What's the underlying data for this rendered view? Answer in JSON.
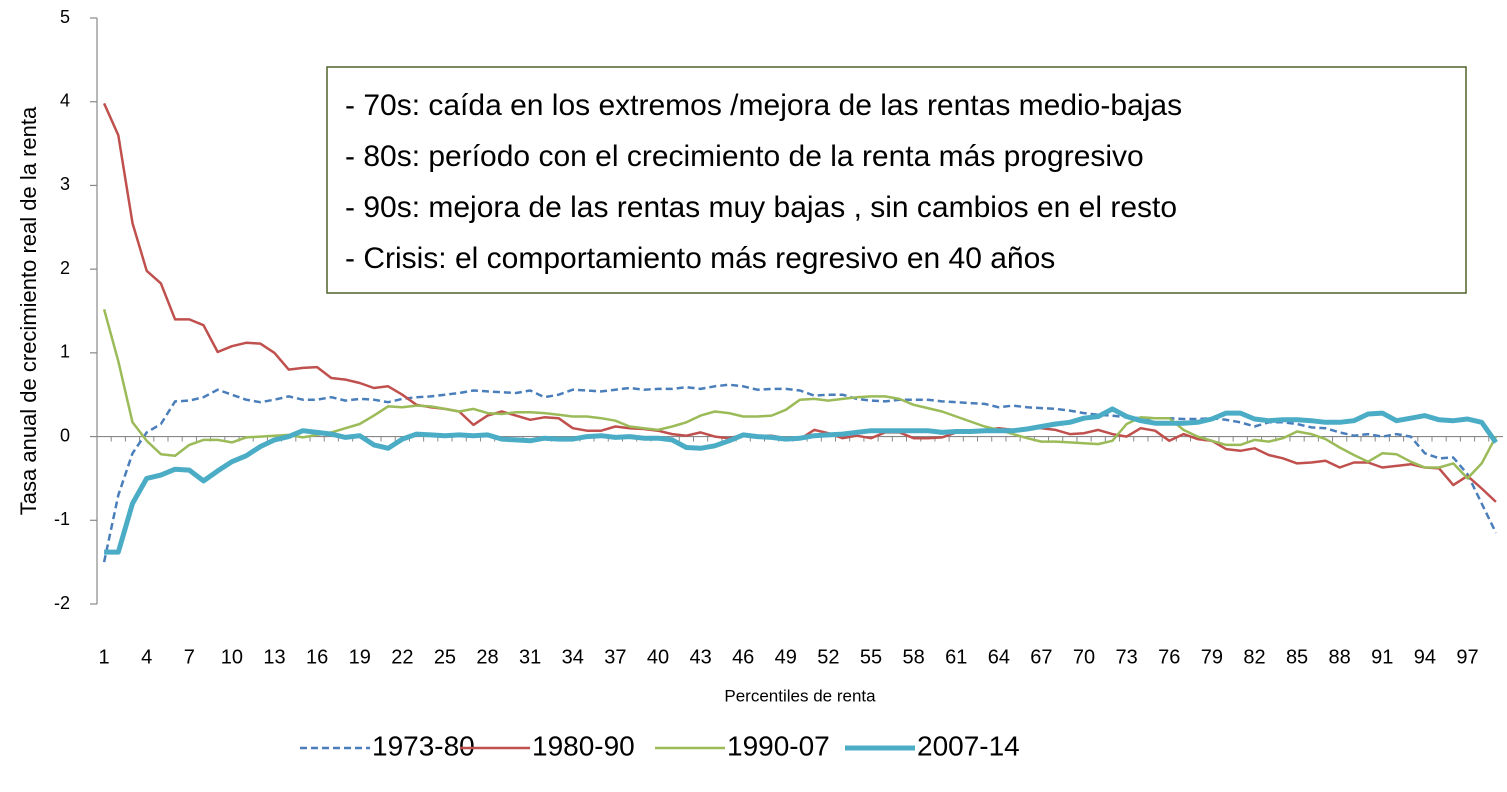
{
  "chart_data": {
    "type": "line",
    "y_label": "Tasa anual de crecimiento real de la renta",
    "x_label": "Percentiles de renta",
    "annotations": [
      "- 70s: caída en los extremos /mejora de las rentas medio-bajas",
      "- 80s: período con el crecimiento de la renta más progresivo",
      "- 90s: mejora de las rentas muy bajas , sin cambios en el resto",
      "- Crisis: el comportamiento más regresivo en 40 años"
    ],
    "categories": [
      1,
      null,
      null,
      4,
      null,
      null,
      7,
      null,
      null,
      10,
      null,
      null,
      13,
      null,
      null,
      16,
      null,
      null,
      19,
      null,
      null,
      22,
      null,
      null,
      25,
      null,
      null,
      28,
      null,
      null,
      31,
      null,
      null,
      34,
      null,
      null,
      37,
      null,
      null,
      40,
      null,
      null,
      43,
      null,
      null,
      46,
      null,
      null,
      49,
      null,
      null,
      52,
      null,
      null,
      55,
      null,
      null,
      58,
      null,
      null,
      61,
      null,
      null,
      64,
      null,
      null,
      67,
      null,
      null,
      70,
      null,
      null,
      73,
      null,
      null,
      76,
      null,
      null,
      79,
      null,
      null,
      82,
      null,
      null,
      85,
      null,
      null,
      88,
      null,
      null,
      91,
      null,
      null,
      94,
      null,
      null,
      97,
      null,
      null
    ],
    "ylim": [
      -2,
      5
    ],
    "yticks": [
      -2,
      -1,
      0,
      1,
      2,
      3,
      4,
      5
    ],
    "legend": "bottom",
    "series": [
      {
        "name": "1973-80",
        "color": "#4a7ebb",
        "dashed": true,
        "width": 2.5,
        "values": [
          -1.5,
          -0.7,
          -0.2,
          0.05,
          0.15,
          0.42,
          0.43,
          0.47,
          0.56,
          0.5,
          0.44,
          0.41,
          0.44,
          0.48,
          0.44,
          0.44,
          0.47,
          0.43,
          0.45,
          0.44,
          0.41,
          0.45,
          0.47,
          0.48,
          0.5,
          0.52,
          0.55,
          0.54,
          0.53,
          0.52,
          0.55,
          0.47,
          0.5,
          0.56,
          0.55,
          0.54,
          0.56,
          0.58,
          0.56,
          0.57,
          0.57,
          0.59,
          0.57,
          0.6,
          0.62,
          0.6,
          0.56,
          0.57,
          0.57,
          0.55,
          0.49,
          0.5,
          0.5,
          0.45,
          0.43,
          0.42,
          0.44,
          0.44,
          0.44,
          0.42,
          0.41,
          0.4,
          0.39,
          0.35,
          0.37,
          0.35,
          0.34,
          0.33,
          0.31,
          0.28,
          0.26,
          0.25,
          0.23,
          0.22,
          0.22,
          0.22,
          0.21,
          0.21,
          0.22,
          0.2,
          0.17,
          0.12,
          0.17,
          0.17,
          0.15,
          0.11,
          0.1,
          0.05,
          0.01,
          0.03,
          0.0,
          0.03,
          0.0,
          -0.2,
          -0.26,
          -0.25,
          -0.45,
          -0.8,
          -1.15
        ]
      },
      {
        "name": "1980-90",
        "color": "#c0504d",
        "dashed": false,
        "width": 2.5,
        "values": [
          3.98,
          3.6,
          2.55,
          1.98,
          1.83,
          1.4,
          1.4,
          1.33,
          1.01,
          1.08,
          1.12,
          1.11,
          1.0,
          0.8,
          0.82,
          0.83,
          0.7,
          0.68,
          0.64,
          0.58,
          0.6,
          0.5,
          0.38,
          0.35,
          0.33,
          0.3,
          0.14,
          0.25,
          0.3,
          0.25,
          0.2,
          0.23,
          0.22,
          0.1,
          0.07,
          0.07,
          0.12,
          0.1,
          0.09,
          0.07,
          0.03,
          0.01,
          0.05,
          0.0,
          -0.02,
          0.02,
          0.01,
          0.01,
          -0.02,
          -0.03,
          0.08,
          0.04,
          -0.02,
          0.01,
          -0.02,
          0.05,
          0.05,
          -0.02,
          -0.02,
          -0.01,
          0.05,
          0.06,
          0.08,
          0.1,
          0.08,
          0.1,
          0.1,
          0.08,
          0.03,
          0.04,
          0.08,
          0.03,
          0.0,
          0.1,
          0.07,
          -0.05,
          0.03,
          -0.03,
          -0.05,
          -0.15,
          -0.17,
          -0.14,
          -0.22,
          -0.26,
          -0.32,
          -0.31,
          -0.29,
          -0.37,
          -0.31,
          -0.31,
          -0.37,
          -0.35,
          -0.33,
          -0.37,
          -0.38,
          -0.58,
          -0.47,
          -0.62,
          -0.78
        ]
      },
      {
        "name": "1990-07",
        "color": "#9bbb59",
        "dashed": false,
        "width": 2.5,
        "values": [
          1.52,
          0.9,
          0.17,
          -0.05,
          -0.21,
          -0.23,
          -0.1,
          -0.04,
          -0.04,
          -0.07,
          -0.01,
          0.0,
          0.01,
          0.02,
          -0.01,
          0.02,
          0.05,
          0.1,
          0.15,
          0.25,
          0.36,
          0.35,
          0.37,
          0.36,
          0.33,
          0.3,
          0.33,
          0.28,
          0.27,
          0.29,
          0.29,
          0.28,
          0.26,
          0.24,
          0.24,
          0.22,
          0.19,
          0.12,
          0.1,
          0.08,
          0.12,
          0.17,
          0.25,
          0.3,
          0.28,
          0.24,
          0.24,
          0.25,
          0.32,
          0.44,
          0.45,
          0.43,
          0.45,
          0.47,
          0.48,
          0.48,
          0.45,
          0.38,
          0.34,
          0.3,
          0.24,
          0.18,
          0.12,
          0.08,
          0.03,
          -0.02,
          -0.06,
          -0.06,
          -0.07,
          -0.08,
          -0.09,
          -0.05,
          0.15,
          0.23,
          0.22,
          0.22,
          0.08,
          0.0,
          -0.05,
          -0.1,
          -0.1,
          -0.04,
          -0.06,
          -0.02,
          0.06,
          0.03,
          -0.03,
          -0.13,
          -0.22,
          -0.3,
          -0.2,
          -0.21,
          -0.3,
          -0.37,
          -0.37,
          -0.32,
          -0.5,
          -0.32,
          0.0
        ]
      },
      {
        "name": "2007-14",
        "color": "#4bacc6",
        "dashed": false,
        "width": 5,
        "values": [
          -1.38,
          -1.38,
          -0.8,
          -0.5,
          -0.46,
          -0.39,
          -0.4,
          -0.53,
          -0.41,
          -0.3,
          -0.23,
          -0.12,
          -0.04,
          0.0,
          0.07,
          0.05,
          0.03,
          -0.01,
          0.01,
          -0.1,
          -0.14,
          -0.03,
          0.03,
          0.02,
          0.01,
          0.02,
          0.01,
          0.02,
          -0.03,
          -0.04,
          -0.05,
          -0.02,
          -0.03,
          -0.03,
          0.0,
          0.01,
          -0.01,
          0.0,
          -0.02,
          -0.02,
          -0.04,
          -0.13,
          -0.14,
          -0.11,
          -0.05,
          0.02,
          0.0,
          -0.01,
          -0.03,
          -0.02,
          0.01,
          0.02,
          0.03,
          0.05,
          0.07,
          0.07,
          0.07,
          0.07,
          0.07,
          0.05,
          0.06,
          0.06,
          0.07,
          0.07,
          0.07,
          0.09,
          0.12,
          0.15,
          0.17,
          0.22,
          0.24,
          0.33,
          0.24,
          0.19,
          0.16,
          0.16,
          0.16,
          0.17,
          0.21,
          0.28,
          0.28,
          0.21,
          0.19,
          0.2,
          0.2,
          0.19,
          0.17,
          0.17,
          0.19,
          0.27,
          0.28,
          0.19,
          0.22,
          0.25,
          0.2,
          0.19,
          0.21,
          0.17,
          -0.07
        ]
      }
    ]
  }
}
